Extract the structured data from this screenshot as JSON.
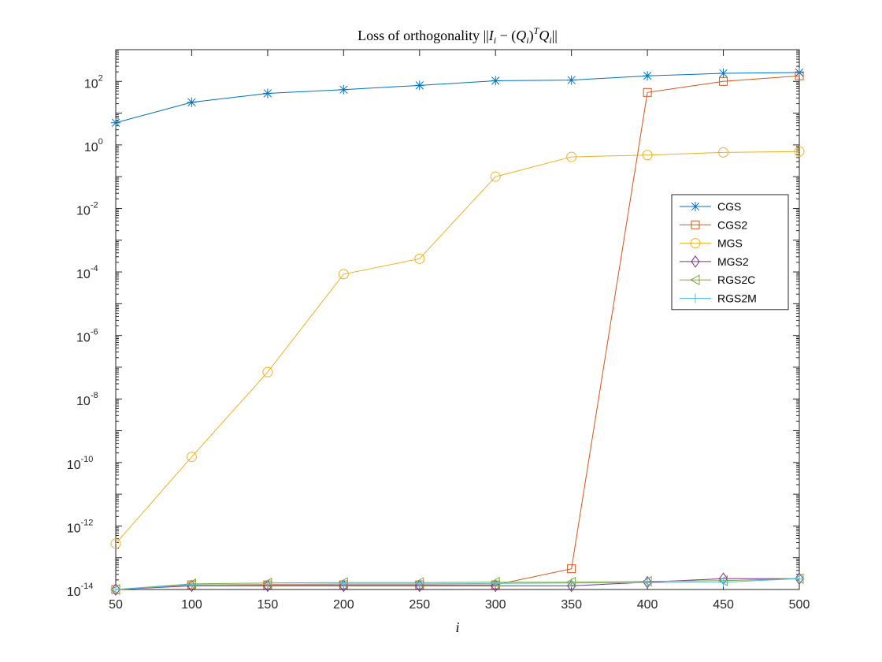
{
  "chart_data": {
    "type": "line",
    "title": "Loss of orthogonality ||I_i − (Q_i)^T Q_i||",
    "xlabel": "i",
    "ylabel": "",
    "x": [
      50,
      100,
      150,
      200,
      250,
      300,
      350,
      400,
      450,
      500
    ],
    "xlim": [
      50,
      500
    ],
    "ylim": [
      1e-14,
      1000.0
    ],
    "yscale": "log",
    "x_ticks": [
      "50",
      "100",
      "150",
      "200",
      "250",
      "300",
      "350",
      "400",
      "450",
      "500"
    ],
    "y_ticks": [
      {
        "base": "10",
        "exp": "-14"
      },
      {
        "base": "10",
        "exp": "-12"
      },
      {
        "base": "10",
        "exp": "-10"
      },
      {
        "base": "10",
        "exp": "-8"
      },
      {
        "base": "10",
        "exp": "-6"
      },
      {
        "base": "10",
        "exp": "-4"
      },
      {
        "base": "10",
        "exp": "-2"
      },
      {
        "base": "10",
        "exp": "0"
      },
      {
        "base": "10",
        "exp": "2"
      }
    ],
    "grid": false,
    "legend_position": "right",
    "series": [
      {
        "name": "CGS",
        "color": "#0072BD",
        "marker": "asterisk",
        "values": [
          5,
          22,
          42,
          55,
          75,
          105,
          110,
          150,
          180,
          190
        ]
      },
      {
        "name": "CGS2",
        "color": "#D95319",
        "marker": "square",
        "values": [
          1e-14,
          1.4e-14,
          1.4e-14,
          1.4e-14,
          1.4e-14,
          1.4e-14,
          4.5e-14,
          45,
          100,
          150
        ]
      },
      {
        "name": "MGS",
        "color": "#EDB120",
        "marker": "circle",
        "values": [
          2.8e-13,
          1.5e-10,
          7e-08,
          8.5e-05,
          0.00026,
          0.1,
          0.42,
          0.48,
          0.58,
          0.62
        ]
      },
      {
        "name": "MGS2",
        "color": "#7E2F8E",
        "marker": "diamond",
        "values": [
          1e-14,
          1.3e-14,
          1.3e-14,
          1.3e-14,
          1.3e-14,
          1.3e-14,
          1.3e-14,
          1.7e-14,
          2.2e-14,
          2.2e-14
        ]
      },
      {
        "name": "RGS2C",
        "color": "#77AC30",
        "marker": "triangle-left",
        "values": [
          1e-14,
          1.5e-14,
          1.6e-14,
          1.65e-14,
          1.65e-14,
          1.7e-14,
          1.7e-14,
          1.8e-14,
          1.9e-14,
          2.2e-14
        ]
      },
      {
        "name": "RGS2M",
        "color": "#4DBEEE",
        "marker": "plus",
        "values": [
          1e-14,
          1.4e-14,
          1.45e-14,
          1.5e-14,
          1.5e-14,
          1.55e-14,
          1.6e-14,
          1.65e-14,
          1.7e-14,
          2.2e-14
        ]
      }
    ]
  }
}
